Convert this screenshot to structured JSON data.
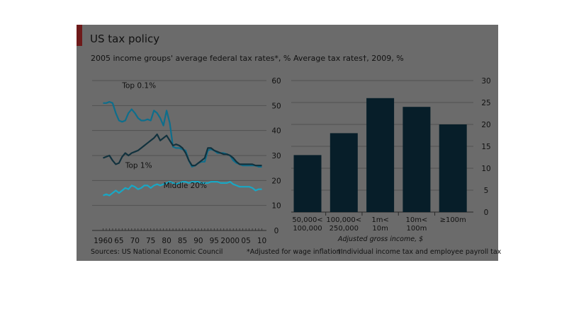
{
  "figure": {
    "title": "US tax policy",
    "source": "Sources: US National Economic Council",
    "footnote_1": "*Adjusted for wage inflation",
    "footnote_2": "†Individual income tax and employee payroll tax",
    "colors": {
      "background": "#6b6b6b",
      "accent": "#6e1a1a",
      "top01": "#0e6e8c",
      "top1": "#12323e",
      "middle20": "#19a7c4",
      "bar": "#071e29"
    }
  },
  "chart_data": [
    {
      "type": "line",
      "title": "2005 income groups' average federal tax rates*, %",
      "xlabel": "",
      "ylabel": "",
      "xlim": [
        1959,
        2011
      ],
      "ylim": [
        0,
        60
      ],
      "grid": true,
      "x_tick_labels": [
        "1960",
        "65",
        "70",
        "75",
        "80",
        "85",
        "90",
        "95",
        "2000",
        "05",
        "10"
      ],
      "x_tick_values": [
        1960,
        1965,
        1970,
        1975,
        1980,
        1985,
        1990,
        1995,
        2000,
        2005,
        2010
      ],
      "y_ticks": [
        0,
        10,
        20,
        30,
        40,
        50,
        60
      ],
      "series": [
        {
          "name": "Top 0.1%",
          "color": "#0e6e8c",
          "points": [
            [
              1960,
              51
            ],
            [
              1961,
              51
            ],
            [
              1962,
              51.5
            ],
            [
              1963,
              51
            ],
            [
              1964,
              47
            ],
            [
              1965,
              44
            ],
            [
              1966,
              43.5
            ],
            [
              1967,
              44
            ],
            [
              1968,
              47
            ],
            [
              1969,
              48.5
            ],
            [
              1970,
              47
            ],
            [
              1971,
              45
            ],
            [
              1972,
              44
            ],
            [
              1973,
              44
            ],
            [
              1974,
              44.5
            ],
            [
              1975,
              44
            ],
            [
              1976,
              48
            ],
            [
              1977,
              47
            ],
            [
              1978,
              45
            ],
            [
              1979,
              42
            ],
            [
              1980,
              48
            ],
            [
              1981,
              43
            ],
            [
              1982,
              33.5
            ],
            [
              1983,
              33
            ],
            [
              1984,
              33
            ],
            [
              1985,
              32.5
            ],
            [
              1986,
              32
            ],
            [
              1987,
              28
            ],
            [
              1988,
              25.5
            ],
            [
              1989,
              26
            ],
            [
              1990,
              27
            ],
            [
              1991,
              27.5
            ],
            [
              1992,
              27.5
            ],
            [
              1993,
              32
            ],
            [
              1994,
              32.5
            ],
            [
              1995,
              32
            ],
            [
              1996,
              31
            ],
            [
              1997,
              31
            ],
            [
              1998,
              31
            ],
            [
              1999,
              30.5
            ],
            [
              2000,
              30
            ],
            [
              2001,
              28
            ],
            [
              2002,
              27
            ],
            [
              2003,
              26.5
            ],
            [
              2004,
              26
            ],
            [
              2005,
              26
            ],
            [
              2006,
              26
            ],
            [
              2007,
              26
            ],
            [
              2008,
              26
            ],
            [
              2009,
              25.5
            ],
            [
              2010,
              25.5
            ]
          ]
        },
        {
          "name": "Top 1%",
          "color": "#12323e",
          "points": [
            [
              1960,
              29
            ],
            [
              1962,
              30
            ],
            [
              1963,
              28
            ],
            [
              1964,
              26.5
            ],
            [
              1965,
              27
            ],
            [
              1966,
              29.5
            ],
            [
              1967,
              31
            ],
            [
              1968,
              30
            ],
            [
              1969,
              31
            ],
            [
              1970,
              31.5
            ],
            [
              1971,
              32
            ],
            [
              1972,
              33
            ],
            [
              1973,
              34
            ],
            [
              1974,
              35
            ],
            [
              1975,
              36
            ],
            [
              1976,
              37
            ],
            [
              1977,
              38.5
            ],
            [
              1978,
              36
            ],
            [
              1979,
              37
            ],
            [
              1980,
              38
            ],
            [
              1981,
              36
            ],
            [
              1982,
              34
            ],
            [
              1983,
              34.5
            ],
            [
              1984,
              34
            ],
            [
              1985,
              33
            ],
            [
              1986,
              31
            ],
            [
              1987,
              28
            ],
            [
              1988,
              26
            ],
            [
              1989,
              26
            ],
            [
              1990,
              27
            ],
            [
              1991,
              28
            ],
            [
              1992,
              29
            ],
            [
              1993,
              33
            ],
            [
              1994,
              33
            ],
            [
              1995,
              32
            ],
            [
              1996,
              31.5
            ],
            [
              1997,
              31
            ],
            [
              1998,
              30.5
            ],
            [
              1999,
              30.5
            ],
            [
              2000,
              30
            ],
            [
              2001,
              29
            ],
            [
              2002,
              27.5
            ],
            [
              2003,
              26.5
            ],
            [
              2004,
              26.5
            ],
            [
              2005,
              26.5
            ],
            [
              2006,
              26.5
            ],
            [
              2007,
              26.5
            ],
            [
              2008,
              26
            ],
            [
              2009,
              26
            ],
            [
              2010,
              26
            ]
          ]
        },
        {
          "name": "Middle 20%",
          "color": "#19a7c4",
          "points": [
            [
              1960,
              14
            ],
            [
              1961,
              14.5
            ],
            [
              1962,
              14
            ],
            [
              1963,
              15
            ],
            [
              1964,
              16
            ],
            [
              1965,
              15
            ],
            [
              1966,
              16
            ],
            [
              1967,
              17
            ],
            [
              1968,
              16.5
            ],
            [
              1969,
              18
            ],
            [
              1970,
              17.5
            ],
            [
              1971,
              16.5
            ],
            [
              1972,
              17
            ],
            [
              1973,
              18
            ],
            [
              1974,
              18
            ],
            [
              1975,
              17
            ],
            [
              1976,
              18
            ],
            [
              1977,
              18.5
            ],
            [
              1978,
              18
            ],
            [
              1979,
              18.5
            ],
            [
              1980,
              19
            ],
            [
              1981,
              19.5
            ],
            [
              1982,
              19
            ],
            [
              1983,
              18.5
            ],
            [
              1984,
              19
            ],
            [
              1985,
              19.5
            ],
            [
              1986,
              19.5
            ],
            [
              1987,
              19
            ],
            [
              1988,
              19.5
            ],
            [
              1989,
              19.5
            ],
            [
              1990,
              19.5
            ],
            [
              1991,
              19
            ],
            [
              1992,
              19
            ],
            [
              1993,
              19
            ],
            [
              1994,
              19.5
            ],
            [
              1995,
              19.5
            ],
            [
              1996,
              19.5
            ],
            [
              1997,
              19
            ],
            [
              1998,
              19
            ],
            [
              1999,
              19
            ],
            [
              2000,
              19.5
            ],
            [
              2001,
              18.5
            ],
            [
              2002,
              18
            ],
            [
              2003,
              17.5
            ],
            [
              2004,
              17.5
            ],
            [
              2005,
              17.5
            ],
            [
              2006,
              17.5
            ],
            [
              2007,
              17
            ],
            [
              2008,
              16
            ],
            [
              2009,
              16.5
            ],
            [
              2010,
              16.5
            ]
          ]
        }
      ]
    },
    {
      "type": "bar",
      "title": "Average tax rates†, 2009, %",
      "xlabel": "Adjusted gross income, $",
      "ylabel": "",
      "ylim": [
        0,
        30
      ],
      "grid": true,
      "y_ticks": [
        0,
        5,
        10,
        15,
        20,
        25,
        30
      ],
      "categories": [
        [
          "50,000<",
          "100,000"
        ],
        [
          "100,000<",
          "250,000"
        ],
        [
          "1m<",
          "10m"
        ],
        [
          "10m<",
          "100m"
        ],
        [
          "≥100m"
        ]
      ],
      "values": [
        13,
        18,
        26,
        24,
        20
      ],
      "color": "#071e29"
    }
  ]
}
